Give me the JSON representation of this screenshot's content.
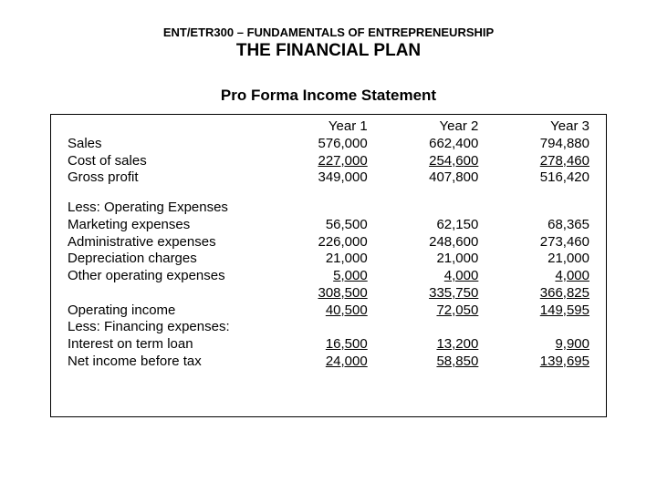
{
  "header": {
    "course": "ENT/ETR300 – FUNDAMENTALS OF ENTREPRENEURSHIP",
    "title": "THE FINANCIAL PLAN",
    "subtitle": "Pro Forma Income Statement"
  },
  "table": {
    "columns": [
      "Year 1",
      "Year 2",
      "Year 3"
    ],
    "rows": [
      {
        "label": "Sales",
        "values": [
          "576,000",
          "662,400",
          "794,880"
        ],
        "underline": [
          false,
          false,
          false
        ]
      },
      {
        "label": "Cost of sales",
        "values": [
          "227,000",
          "254,600",
          "278,460"
        ],
        "underline": [
          true,
          true,
          true
        ]
      },
      {
        "label": "Gross profit",
        "values": [
          "349,000",
          "407,800",
          "516,420"
        ],
        "underline": [
          false,
          false,
          false
        ]
      }
    ],
    "section2_header": "Less: Operating Expenses",
    "rows2": [
      {
        "label": "Marketing expenses",
        "values": [
          "56,500",
          "62,150",
          "68,365"
        ],
        "underline": [
          false,
          false,
          false
        ]
      },
      {
        "label": "Administrative expenses",
        "values": [
          "226,000",
          "248,600",
          "273,460"
        ],
        "underline": [
          false,
          false,
          false
        ]
      },
      {
        "label": "Depreciation charges",
        "values": [
          "21,000",
          "21,000",
          "21,000"
        ],
        "underline": [
          false,
          false,
          false
        ]
      },
      {
        "label": "Other operating expenses",
        "values": [
          "   5,000",
          "   4,000",
          "   4,000"
        ],
        "underline": [
          true,
          true,
          true
        ]
      },
      {
        "label": "",
        "values": [
          "308,500",
          "335,750",
          "366,825"
        ],
        "underline": [
          true,
          true,
          true
        ]
      },
      {
        "label": "Operating income",
        "values": [
          "  40,500",
          "  72,050",
          "149,595"
        ],
        "underline": [
          true,
          true,
          true
        ]
      },
      {
        "label": "Less: Financing expenses:",
        "values": [
          "",
          "",
          ""
        ],
        "underline": [
          false,
          false,
          false
        ]
      },
      {
        "label": "Interest on term loan",
        "values": [
          "16,500",
          "13,200",
          "   9,900"
        ],
        "underline": [
          true,
          true,
          true
        ]
      },
      {
        "label": "Net income before tax",
        "values": [
          "24,000",
          "58,850",
          "139,695"
        ],
        "underline": [
          true,
          true,
          true
        ]
      }
    ]
  },
  "style": {
    "background_color": "#ffffff",
    "text_color": "#000000",
    "border_color": "#000000",
    "font_family": "Arial",
    "course_fontsize": 13,
    "title_fontsize": 19,
    "subtitle_fontsize": 17,
    "body_fontsize": 15
  }
}
